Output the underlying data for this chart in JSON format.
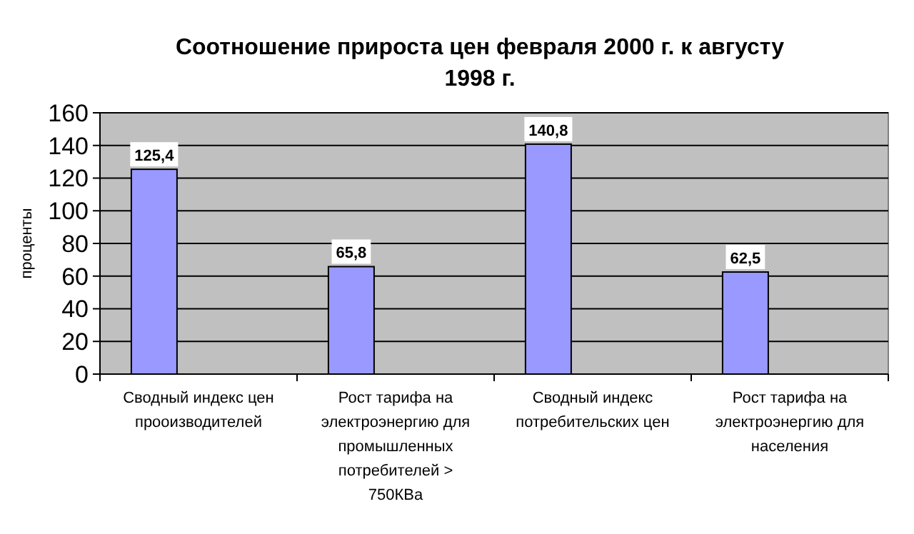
{
  "chart_data": {
    "type": "bar",
    "title": "Соотношение прироста цен февраля 2000 г. к августу 1998 г.",
    "ylabel": "проценты",
    "categories": [
      "Сводный индекс цен прооизводителей",
      "Рост тарифа на электроэнергию для промышленных потребителей > 750КВа",
      "Сводный индекс потребительских цен",
      "Рост тарифа на электроэнергию для населения"
    ],
    "values": [
      125.4,
      65.8,
      140.8,
      62.5
    ],
    "color": "#9999ff",
    "ylim": [
      0,
      160
    ],
    "yticks": [
      0,
      20,
      40,
      60,
      80,
      100,
      120,
      140,
      160
    ],
    "grid": "y",
    "value_labels": [
      "125,4",
      "65,8",
      "140,8",
      "62,5"
    ]
  }
}
